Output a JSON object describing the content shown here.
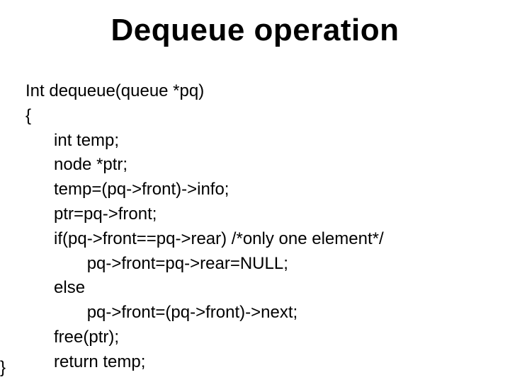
{
  "title": "Dequeue operation",
  "code": {
    "line1": "Int dequeue(queue *pq)",
    "line2": "{",
    "line3": "int temp;",
    "line4": "node *ptr;",
    "line5": "temp=(pq->front)->info;",
    "line6": "ptr=pq->front;",
    "line7": "if(pq->front==pq->rear) /*only one element*/",
    "line8": "pq->front=pq->rear=NULL;",
    "line9": "else",
    "line10": "pq->front=(pq->front)->next;",
    "line11": "free(ptr);",
    "line12": "return temp;",
    "closing": "}"
  },
  "style": {
    "background": "#ffffff",
    "text_color": "#000000",
    "title_fontsize": 44,
    "body_fontsize": 24,
    "font_family": "Arial"
  }
}
